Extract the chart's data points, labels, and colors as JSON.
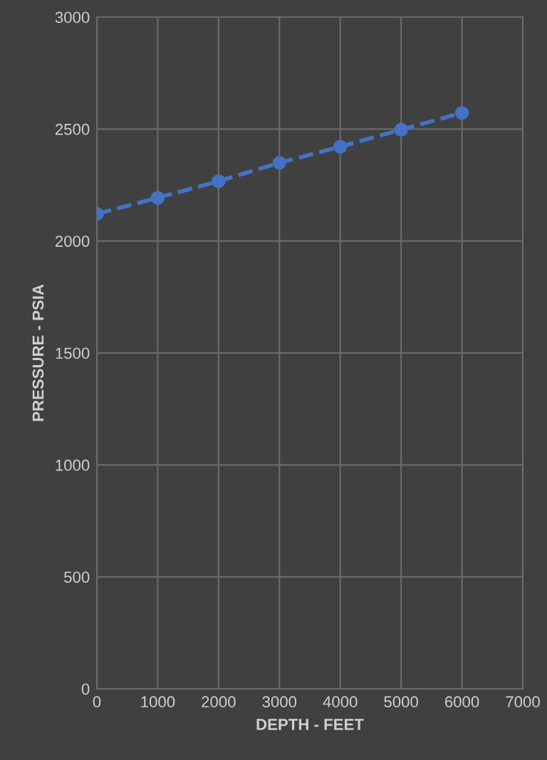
{
  "chart_data": {
    "type": "line",
    "xlabel": "DEPTH - FEET",
    "ylabel": "PRESSURE - PSIA",
    "x": [
      0,
      1000,
      2000,
      3000,
      4000,
      5000,
      6000
    ],
    "series": [
      {
        "color": "#4472c4",
        "values": [
          2121,
          2193,
          2267,
          2349,
          2421,
          2497,
          2572
        ]
      }
    ],
    "xlim": [
      0,
      7000
    ],
    "xticks": [
      0,
      1000,
      2000,
      3000,
      4000,
      5000,
      6000,
      7000
    ],
    "ylim": [
      0,
      3000
    ],
    "yticks": [
      0,
      500,
      1000,
      1500,
      2000,
      2500,
      3000
    ],
    "grid": true,
    "marker": "circle",
    "line_style": "dashed"
  }
}
